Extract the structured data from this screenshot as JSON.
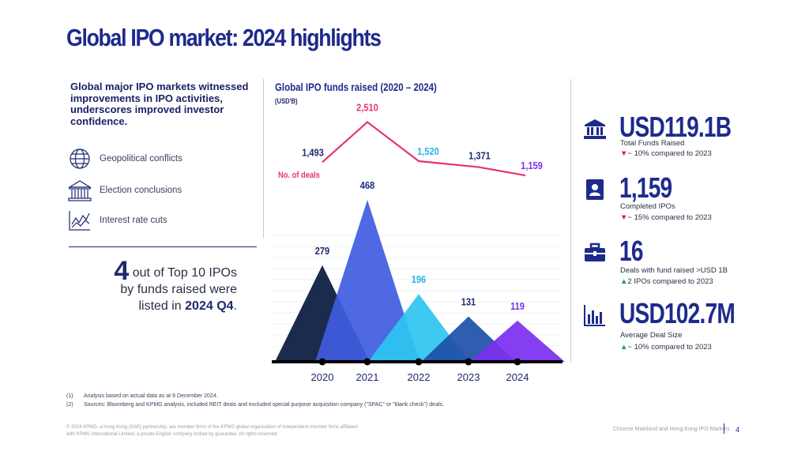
{
  "title": "Global IPO market: 2024 highlights",
  "intro": "Global major IPO markets witnessed improvements in IPO activities, underscores improved investor confidence.",
  "factors": [
    {
      "icon": "globe-icon",
      "label": "Geopolitical conflicts"
    },
    {
      "icon": "building-icon",
      "label": "Election conclusions"
    },
    {
      "icon": "rate-chart-icon",
      "label": "Interest rate cuts"
    }
  ],
  "top_ipos": {
    "number": "4",
    "text_a": " out of Top 10 IPOs",
    "text_b": "by funds raised were",
    "text_c": "listed in ",
    "highlight": "2024 Q4",
    "end": "."
  },
  "chart_data": {
    "type": "area",
    "title": "Global IPO funds raised (2020 – 2024)",
    "subtitle": "(USD'B)",
    "categories": [
      "2020",
      "2021",
      "2022",
      "2023",
      "2024"
    ],
    "funds_series": {
      "name": "Funds raised (USD'B)",
      "values": [
        279,
        468,
        196,
        131,
        119
      ],
      "labels": [
        "279",
        "468",
        "196",
        "131",
        "119"
      ],
      "colors": [
        "#1b2b4d",
        "#3f5ce0",
        "#2ec4f0",
        "#1d4fa8",
        "#7b2ff0"
      ],
      "label_colors": [
        "#1e2a6e",
        "#1e2a8c",
        "#22b5ee",
        "#1e2a6e",
        "#7b2ff0"
      ],
      "ylim": [
        0,
        500
      ]
    },
    "deals_series": {
      "name": "No. of deals",
      "values": [
        1493,
        2510,
        1520,
        1371,
        1159
      ],
      "labels": [
        "1,493",
        "2,510",
        "1,520",
        "1,371",
        "1,159"
      ],
      "label_colors": [
        "#1e2a6e",
        "#e8317a",
        "#22b5ee",
        "#1e2a6e",
        "#7b2ff0"
      ],
      "color": "#e8317a"
    }
  },
  "kpis": [
    {
      "icon": "bank-icon",
      "value": "USD119.1B",
      "desc": "Total Funds Raised",
      "arrow": "▼",
      "dir": "down",
      "change": "~ 10% compared to 2023"
    },
    {
      "icon": "id-card-icon",
      "value": "1,159",
      "desc": "Completed IPOs",
      "arrow": "▼",
      "dir": "down",
      "change": "~ 15% compared to 2023"
    },
    {
      "icon": "briefcase-icon",
      "value": "16",
      "desc": "Deals with fund raised >USD 1B",
      "arrow": "▲",
      "dir": "up",
      "change_lead": "2",
      "change": " IPOs compared to 2023"
    },
    {
      "icon": "bar-chart-icon",
      "value": "USD102.7M",
      "desc": "Average Deal Size",
      "arrow": "▲",
      "dir": "up",
      "change": "~ 10% compared to 2023"
    }
  ],
  "notes": [
    {
      "num": "(1)",
      "text": "Analysis based on actual data as at 8 December 2024."
    },
    {
      "num": "(2)",
      "text": "Sources: Bloomberg and KPMG analysis, included REIT deals and excluded special purpose acquisition company (\"SPAC\" or \"blank check\") deals."
    }
  ],
  "footer": {
    "legal": "© 2024 KPMG, a Hong Kong (SAR) partnership, are member firms of the KPMG global organisation of independent member firms affiliated with KPMG International Limited, a private English company limited by guarantee. All rights reserved.",
    "report": "Chinese Mainland and Hong Kong IPO Markets",
    "page": "4"
  }
}
